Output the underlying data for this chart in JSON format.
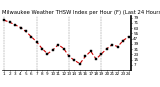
{
  "title": "Milwaukee Weather THSW Index per Hour (F) (Last 24 Hours)",
  "y_values": [
    75,
    72,
    68,
    64,
    58,
    50,
    42,
    32,
    24,
    30,
    38,
    32,
    20,
    14,
    9,
    20,
    28,
    16,
    24,
    32,
    38,
    35,
    44,
    50
  ],
  "x_labels": [
    "1",
    "2",
    "3",
    "4",
    "5",
    "6",
    "7",
    "8",
    "9",
    "10",
    "11",
    "12",
    "13",
    "14",
    "15",
    "16",
    "17",
    "18",
    "19",
    "20",
    "21",
    "22",
    "23",
    "24"
  ],
  "line_color": "#cc0000",
  "marker_color": "#000000",
  "grid_color": "#888888",
  "bg_color": "#ffffff",
  "title_color": "#000000",
  "ylim": [
    0,
    82
  ],
  "yticks": [
    7,
    15,
    23,
    31,
    39,
    47,
    55,
    63,
    71,
    79
  ],
  "title_fontsize": 3.8,
  "tick_fontsize": 3.0,
  "line_width": 0.8,
  "marker_size": 1.8,
  "grid_lw": 0.35,
  "grid_interval": 6
}
